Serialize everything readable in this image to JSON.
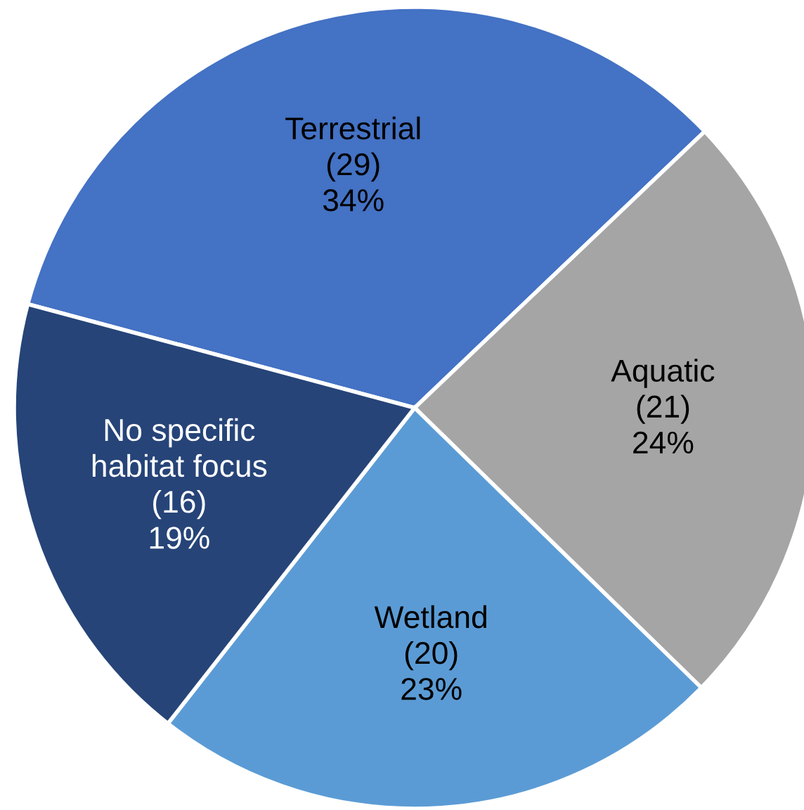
{
  "chart_data": {
    "type": "pie",
    "categories": [
      "Terrestrial",
      "Aquatic",
      "Wetland",
      "No specific\nhabitat focus"
    ],
    "values": [
      29,
      21,
      20,
      16
    ],
    "value_labels": [
      "(29)\n34%",
      "(21)\n24%",
      "(20)\n23%",
      "(16)\n19%"
    ],
    "colors": [
      "#4472c4",
      "#a5a5a5",
      "#5b9bd5",
      "#264478"
    ],
    "legend": false
  }
}
